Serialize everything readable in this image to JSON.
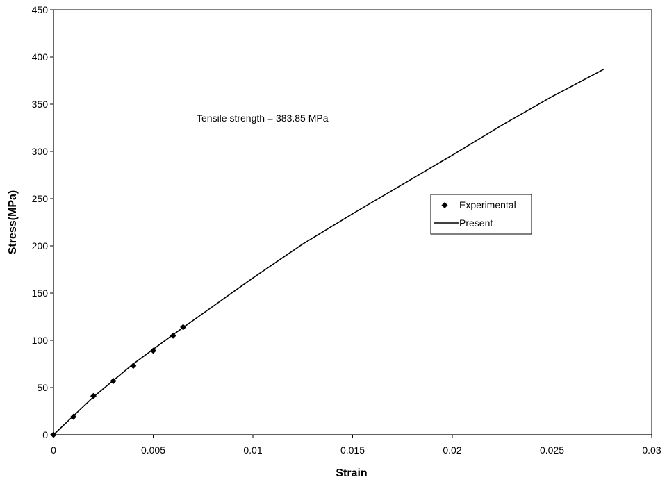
{
  "chart_data": {
    "type": "scatter",
    "xlabel": "Strain",
    "ylabel": "Stress(MPa)",
    "xlim": [
      0,
      0.03
    ],
    "ylim": [
      0,
      450
    ],
    "x_ticks": [
      "0",
      "0.005",
      "0.01",
      "0.015",
      "0.02",
      "0.025",
      "0.03"
    ],
    "y_ticks": [
      "0",
      "50",
      "100",
      "150",
      "200",
      "250",
      "300",
      "350",
      "400",
      "450"
    ],
    "grid": false,
    "legend_position": "right",
    "annotation": "Tensile strength = 383.85 MPa",
    "series": [
      {
        "name": "Experimental",
        "style": "markers",
        "marker": "diamond",
        "color": "#000000",
        "x": [
          0,
          0.001,
          0.002,
          0.003,
          0.004,
          0.005,
          0.006,
          0.0065
        ],
        "y": [
          0,
          19,
          41,
          57,
          73,
          89,
          105,
          114
        ]
      },
      {
        "name": "Present",
        "style": "line",
        "color": "#000000",
        "x": [
          0,
          0.002,
          0.004,
          0.006,
          0.008,
          0.01,
          0.0125,
          0.015,
          0.0175,
          0.02,
          0.0225,
          0.025,
          0.0276
        ],
        "y": [
          0,
          40,
          75,
          106,
          136,
          166,
          202,
          234,
          265,
          296,
          328,
          358,
          387
        ]
      }
    ]
  }
}
